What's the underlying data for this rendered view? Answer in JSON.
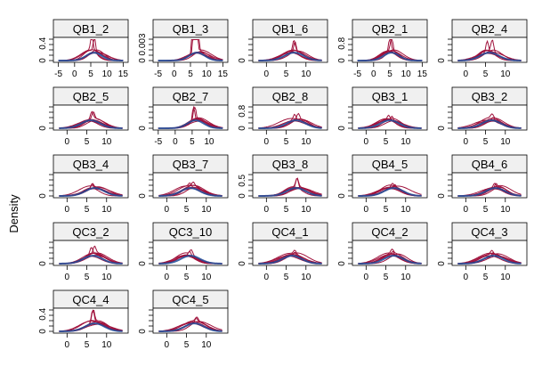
{
  "chart_data": {
    "type": "line",
    "ylabel": "Density",
    "xlabel": "",
    "colors": {
      "sample_curves": "#a0123c",
      "reference_curve": "#1f4e9a",
      "strip_fill": "#f0f0f0"
    },
    "panels": [
      {
        "title": "QB1_2",
        "xlim": [
          -6,
          16
        ],
        "xticks": [
          -5,
          0,
          5,
          10,
          15
        ],
        "yticks": [
          0.0,
          0.4
        ],
        "ymax": 0.5,
        "peak": 6,
        "spike": 0.45
      },
      {
        "title": "QB1_3",
        "xlim": [
          -6,
          16
        ],
        "xticks": [
          -5,
          0,
          5,
          10,
          15
        ],
        "yticks": [
          0.0,
          0.003
        ],
        "ymax": 0.004,
        "peak": 7,
        "spike": 0.3
      },
      {
        "title": "QB1_6",
        "xlim": [
          -3,
          15
        ],
        "xticks": [
          0,
          5,
          10
        ],
        "yticks": [
          0.0
        ],
        "ymax": 0.4,
        "peak": 7,
        "spike": 0.25
      },
      {
        "title": "QB2_1",
        "xlim": [
          -6,
          16
        ],
        "xticks": [
          -5,
          0,
          5,
          10,
          15
        ],
        "yticks": [
          0.0,
          0.8
        ],
        "ymax": 1.0,
        "peak": 5.5,
        "spike": 0.9
      },
      {
        "title": "QB2_4",
        "xlim": [
          -3,
          15
        ],
        "xticks": [
          0,
          5,
          10
        ],
        "yticks": [
          0.0
        ],
        "ymax": 0.4,
        "peak": 6,
        "spike": 0.25
      },
      {
        "title": "QB2_5",
        "xlim": [
          -3,
          15
        ],
        "xticks": [
          0,
          5,
          10
        ],
        "yticks": [
          0.0
        ],
        "ymax": 0.4,
        "peak": 6,
        "spike": 0.15
      },
      {
        "title": "QB2_7",
        "xlim": [
          -6,
          15
        ],
        "xticks": [
          -5,
          0,
          5,
          10
        ],
        "yticks": [
          0.0
        ],
        "ymax": 0.5,
        "peak": 6,
        "spike": 0.4
      },
      {
        "title": "QB2_8",
        "xlim": [
          -3,
          15
        ],
        "xticks": [
          0,
          5,
          10
        ],
        "yticks": [
          0.0,
          0.8
        ],
        "ymax": 1.0,
        "peak": 7.5,
        "spike": 0.3
      },
      {
        "title": "QB3_1",
        "xlim": [
          -3,
          15
        ],
        "xticks": [
          0,
          5,
          10
        ],
        "yticks": [
          0.0
        ],
        "ymax": 0.4,
        "peak": 6,
        "spike": 0.1
      },
      {
        "title": "QB3_2",
        "xlim": [
          -3,
          15
        ],
        "xticks": [
          0,
          5,
          10
        ],
        "yticks": [
          0.0
        ],
        "ymax": 0.4,
        "peak": 6.5,
        "spike": 0.08
      },
      {
        "title": "QB3_4",
        "xlim": [
          -3,
          15
        ],
        "xticks": [
          0,
          5,
          10
        ],
        "yticks": [
          0.0
        ],
        "ymax": 0.4,
        "peak": 7,
        "spike": 0.1
      },
      {
        "title": "QB3_7",
        "xlim": [
          -3,
          15
        ],
        "xticks": [
          0,
          5,
          10
        ],
        "yticks": [
          0.0
        ],
        "ymax": 0.4,
        "peak": 6,
        "spike": 0.08
      },
      {
        "title": "QB3_8",
        "xlim": [
          -3,
          15
        ],
        "xticks": [
          0,
          5,
          10
        ],
        "yticks": [
          0.0,
          0.5
        ],
        "ymax": 0.7,
        "peak": 7.5,
        "spike": 0.35
      },
      {
        "title": "QB4_5",
        "xlim": [
          -3,
          15
        ],
        "xticks": [
          0,
          5,
          10
        ],
        "yticks": [
          0.0
        ],
        "ymax": 0.4,
        "peak": 7,
        "spike": 0.08
      },
      {
        "title": "QB4_6",
        "xlim": [
          -3,
          15
        ],
        "xticks": [
          0,
          5,
          10
        ],
        "yticks": [
          0.0
        ],
        "ymax": 0.4,
        "peak": 7.5,
        "spike": 0.1
      },
      {
        "title": "QC3_2",
        "xlim": [
          -3,
          15
        ],
        "xticks": [
          0,
          5,
          10
        ],
        "yticks": [
          0.0
        ],
        "ymax": 0.4,
        "peak": 6.5,
        "spike": 0.15
      },
      {
        "title": "QC3_10",
        "xlim": [
          -3,
          15
        ],
        "xticks": [
          0,
          5,
          10
        ],
        "yticks": [
          0.0
        ],
        "ymax": 0.4,
        "peak": 6,
        "spike": 0.1
      },
      {
        "title": "QC4_1",
        "xlim": [
          -3,
          15
        ],
        "xticks": [
          0,
          5,
          10
        ],
        "yticks": [
          0.0
        ],
        "ymax": 0.4,
        "peak": 6.5,
        "spike": 0.08
      },
      {
        "title": "QC4_2",
        "xlim": [
          -3,
          15
        ],
        "xticks": [
          0,
          5,
          10
        ],
        "yticks": [
          0.0
        ],
        "ymax": 0.4,
        "peak": 7,
        "spike": 0.08
      },
      {
        "title": "QC4_3",
        "xlim": [
          -3,
          15
        ],
        "xticks": [
          0,
          5,
          10
        ],
        "yticks": [
          0.0
        ],
        "ymax": 0.4,
        "peak": 7,
        "spike": 0.08
      },
      {
        "title": "QC4_4",
        "xlim": [
          -3,
          15
        ],
        "xticks": [
          0,
          5,
          10
        ],
        "yticks": [
          0.0,
          0.4
        ],
        "ymax": 0.5,
        "peak": 7,
        "spike": 0.35
      },
      {
        "title": "QC4_5",
        "xlim": [
          -3,
          15
        ],
        "xticks": [
          0,
          5,
          10
        ],
        "yticks": [
          0.0
        ],
        "ymax": 0.4,
        "peak": 7,
        "spike": 0.08
      }
    ]
  }
}
